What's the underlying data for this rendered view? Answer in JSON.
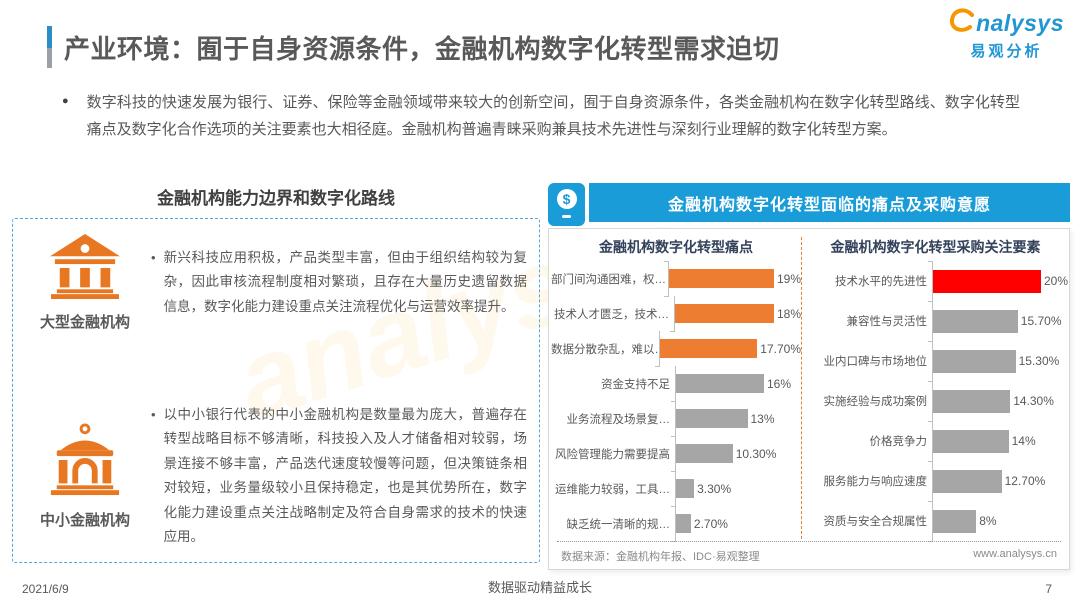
{
  "header": {
    "title": "产业环境：囿于自身资源条件，金融机构数字化转型需求迫切"
  },
  "logo": {
    "brand": "nalysys",
    "brand_full": "analysys",
    "brand_cn": "易观分析"
  },
  "icons": {
    "dollar": "$"
  },
  "bullets": {
    "disc": "●",
    "dot": "•"
  },
  "intro": {
    "text": "数字科技的快速发展为银行、证券、保险等金融领域带来较大的创新空间，囿于自身资源条件，各类金融机构在数字化转型路线、数字化转型痛点及数字化合作选项的关注要素也大相径庭。金融机构普遍青睐采购兼具技术先进性与深刻行业理解的数字化转型方案。"
  },
  "left_panel": {
    "title": "金融机构能力边界和数字化路线",
    "items": [
      {
        "label": "大型金融机构",
        "icon": "bank-classical-icon",
        "text": "新兴科技应用积极，产品类型丰富，但由于组织结构较为复杂，因此审核流程制度相对繁琐，且存在大量历史遗留数据信息，数字化能力建设重点关注流程优化与运营效率提升。"
      },
      {
        "label": "中小金融机构",
        "icon": "bank-dome-icon",
        "text": "以中小银行代表的中小金融机构是数量最为庞大，普遍存在转型战略目标不够清晰，科技投入及人才储备相对较弱，场景连接不够丰富，产品迭代速度较慢等问题，但决策链条相对较短，业务量级较小且保持稳定，也是其优势所在，数字化能力建设重点关注战略制定及符合自身需求的技术的快速应用。"
      }
    ]
  },
  "right_panel": {
    "header": "金融机构数字化转型面临的痛点及采购意愿",
    "source": "数据来源：金融机构年报、IDC·易观整理",
    "website": "www.analysys.cn"
  },
  "chart_data": [
    {
      "type": "bar",
      "orientation": "horizontal",
      "title": "金融机构数字化转型痛点",
      "categories": [
        "部门间沟通困难，权…",
        "技术人才匮乏，技术…",
        "数据分散杂乱，难以…",
        "资金支持不足",
        "业务流程及场景复…",
        "风险管理能力需要提高",
        "运维能力较弱，工具…",
        "缺乏统一清晰的规…"
      ],
      "values": [
        19,
        18,
        17.7,
        16,
        13,
        10.3,
        3.3,
        2.7
      ],
      "value_labels": [
        "19%",
        "18%",
        "17.70%",
        "16%",
        "13%",
        "10.30%",
        "3.30%",
        "2.70%"
      ],
      "bar_colors": [
        "#ED7D31",
        "#ED7D31",
        "#ED7D31",
        "#A6A6A6",
        "#A6A6A6",
        "#A6A6A6",
        "#A6A6A6",
        "#A6A6A6"
      ],
      "xlim": [
        0,
        21
      ],
      "grid": false,
      "legend": "none"
    },
    {
      "type": "bar",
      "orientation": "horizontal",
      "title": "金融机构数字化转型采购关注要素",
      "categories": [
        "技术水平的先进性",
        "兼容性与灵活性",
        "业内口碑与市场地位",
        "实施经验与成功案例",
        "价格竞争力",
        "服务能力与响应速度",
        "资质与安全合规属性"
      ],
      "values": [
        20,
        15.7,
        15.3,
        14.3,
        14,
        12.7,
        8
      ],
      "value_labels": [
        "20%",
        "15.70%",
        "15.30%",
        "14.30%",
        "14%",
        "12.70%",
        "8%"
      ],
      "bar_colors": [
        "#FF0000",
        "#A6A6A6",
        "#A6A6A6",
        "#A6A6A6",
        "#A6A6A6",
        "#A6A6A6",
        "#A6A6A6"
      ],
      "xlim": [
        0,
        21
      ],
      "grid": false,
      "legend": "none"
    }
  ],
  "colors": {
    "header_blue": "#1A9CD8",
    "orange": "#ED7D31",
    "red": "#FF0000",
    "gray_bar": "#A6A6A6",
    "icon_orange": "#E87722",
    "dashed_border_blue": "#55A4DC"
  },
  "footer": {
    "date": "2021/6/9",
    "center": "数据驱动精益成长",
    "page": "7"
  }
}
